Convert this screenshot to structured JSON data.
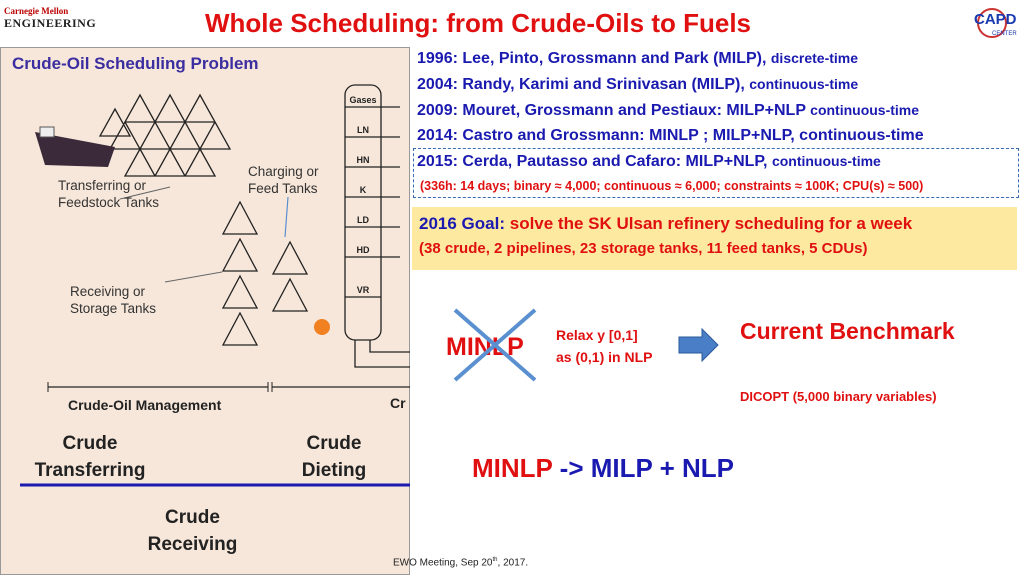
{
  "header": {
    "title": "Whole Scheduling: from Crude-Oils to Fuels",
    "logo_left": [
      "Carnegie Mellon",
      "ENGINEERING"
    ],
    "logo_right": [
      "CAPD",
      "CENTER"
    ]
  },
  "panel": {
    "title": "Crude-Oil Scheduling Problem",
    "labels": [
      "Transferring or Feedstock Tanks",
      "Charging or Feed Tanks",
      "Receiving or Storage Tanks"
    ],
    "column_streams": [
      "Gases",
      "LN",
      "HN",
      "K",
      "LD",
      "HD",
      "VR"
    ],
    "sections": [
      "Crude-Oil Management",
      "Cr"
    ],
    "stages": [
      "Crude Transferring",
      "Crude Dieting",
      "Crude Receiving"
    ]
  },
  "references": [
    {
      "main": "1996: Lee, Pinto, Grossmann and Park (MILP),",
      "sub": "discrete-time"
    },
    {
      "main": "2004: Randy, Karimi and Srinivasan (MILP),",
      "sub": "continuous-time"
    },
    {
      "main": "2009: Mouret, Grossmann and Pestiaux: MILP+NLP",
      "sub": "continuous-time"
    },
    {
      "main": "2014: Castro and Grossmann: MINLP ; MILP+NLP, continuous-time",
      "sub": null
    },
    {
      "main": "2015: Cerda, Pautasso and Cafaro: MILP+NLP,",
      "sub": "continuous-time"
    }
  ],
  "stats": "(336h: 14 days; binary ≈ 4,000; continuous ≈ 6,000; constraints ≈ 100K; CPU(s) ≈ 500)",
  "goal": {
    "label": "2016 Goal:",
    "text": "solve the SK Ulsan refinery scheduling for a week",
    "detail": "(38 crude, 2 pipelines, 23 storage tanks, 11 feed tanks, 5 CDUs)"
  },
  "approach": {
    "crossed": "MINLP",
    "relax": [
      "Relax y [0,1]",
      "as (0,1) in NLP"
    ],
    "benchmark": "Current Benchmark",
    "benchmark_detail": "DICOPT (5,000 binary variables)",
    "decomposition": [
      "MINLP",
      "-> MILP + NLP"
    ]
  },
  "footer": {
    "text": "EWO Meeting, Sep 20",
    "sup": "th",
    "end": ", 2017."
  }
}
